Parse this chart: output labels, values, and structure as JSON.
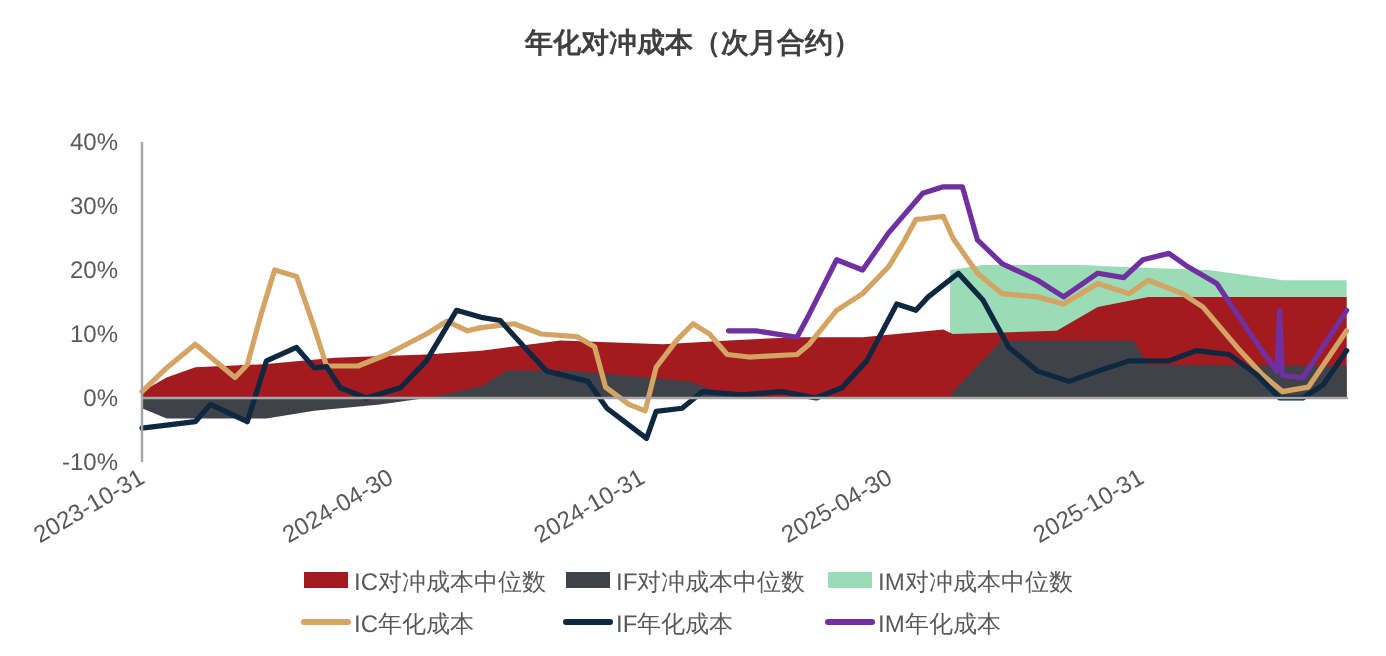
{
  "chart_data": {
    "type": "line",
    "title": "年化对冲成本（次月合约）",
    "xlim": [
      "2023-10-31",
      "2026-03-31"
    ],
    "xticks": [
      "2023-10-31",
      "2024-04-30",
      "2024-10-31",
      "2025-04-30",
      "2025-10-31"
    ],
    "ylim": [
      -10,
      40
    ],
    "yticks": [
      {
        "value": -10,
        "label": "-10%"
      },
      {
        "value": 0,
        "label": "0%"
      },
      {
        "value": 10,
        "label": "10%"
      },
      {
        "value": 20,
        "label": "20%"
      },
      {
        "value": 30,
        "label": "30%"
      },
      {
        "value": 40,
        "label": "40%"
      }
    ],
    "grid": false,
    "legend": "bottom",
    "ref_lines": [
      {
        "axis": "y",
        "value": 0,
        "color": "#a6a6a6"
      }
    ],
    "series": [
      {
        "name": "IC对冲成本中位数",
        "type": "area",
        "color": "#a31a1f",
        "x": [
          "2023-10-31",
          "2023-11-18",
          "2023-12-09",
          "2024-01-30",
          "2024-03-20",
          "2024-05-26",
          "2024-07-05",
          "2024-09-01",
          "2024-11-15",
          "2025-01-02",
          "2025-02-21",
          "2025-04-10",
          "2025-06-08",
          "2025-06-15",
          "2025-08-30",
          "2025-09-29",
          "2025-11-05",
          "2026-03-30"
        ],
        "values": [
          1,
          3.2,
          4.8,
          5.3,
          6.3,
          6.8,
          7.4,
          9,
          8.4,
          9,
          9.5,
          9.5,
          10.7,
          10,
          10.5,
          14.2,
          15.8,
          15.8
        ]
      },
      {
        "name": "IF对冲成本中位数",
        "type": "area",
        "color": "#3f4249",
        "x": [
          "2023-10-31",
          "2023-11-18",
          "2024-01-30",
          "2024-03-05",
          "2024-04-22",
          "2024-05-26",
          "2024-07-05",
          "2024-07-24",
          "2024-09-06",
          "2024-11-04",
          "2024-12-04",
          "2024-12-24",
          "2025-01-08",
          "2025-06-13",
          "2025-06-15",
          "2025-07-21",
          "2025-10-25",
          "2025-11-05",
          "2026-03-30"
        ],
        "values": [
          -1.6,
          -3.2,
          -3.2,
          -2,
          -1,
          0,
          1.8,
          4.3,
          4.3,
          3.2,
          2.6,
          1,
          0,
          0,
          1,
          9,
          9,
          5.2,
          5
        ]
      },
      {
        "name": "IM对冲成本中位数",
        "type": "area",
        "color": "#99dcb6",
        "x": [
          "2025-06-13",
          "2025-07-07",
          "2025-09-18",
          "2025-10-13",
          "2025-12-19",
          "2026-02-11",
          "2026-03-30"
        ],
        "values": [
          20,
          20.8,
          20.8,
          20.5,
          20,
          18.4,
          18.4
        ]
      },
      {
        "name": "IC年化成本",
        "color": "#d4a464",
        "x": [
          "2023-10-31",
          "2023-11-18",
          "2023-12-09",
          "2024-01-07",
          "2024-01-16",
          "2024-01-26",
          "2024-02-05",
          "2024-02-21",
          "2024-03-05",
          "2024-03-14",
          "2024-04-06",
          "2024-04-27",
          "2024-05-26",
          "2024-06-10",
          "2024-06-25",
          "2024-07-05",
          "2024-07-29",
          "2024-08-18",
          "2024-09-13",
          "2024-09-26",
          "2024-10-04",
          "2024-10-21",
          "2024-11-02",
          "2024-11-10",
          "2024-11-25",
          "2024-12-07",
          "2024-12-19",
          "2025-01-01",
          "2025-01-17",
          "2025-02-21",
          "2025-03-02",
          "2025-03-22",
          "2025-04-10",
          "2025-04-29",
          "2025-05-09",
          "2025-05-19",
          "2025-05-24",
          "2025-06-08",
          "2025-06-15",
          "2025-07-03",
          "2025-07-21",
          "2025-08-16",
          "2025-09-04",
          "2025-09-29",
          "2025-10-22",
          "2025-11-05",
          "2025-11-30",
          "2025-12-15",
          "2026-01-09",
          "2026-01-27",
          "2026-02-11",
          "2026-03-02",
          "2026-03-30"
        ],
        "values": [
          1,
          4.7,
          8.4,
          3.2,
          5.2,
          13,
          20,
          19,
          11,
          5,
          5,
          6.8,
          10,
          12,
          10.5,
          11,
          11.6,
          10,
          9.6,
          8,
          1.7,
          -1,
          -2,
          4.8,
          9,
          11.6,
          10,
          6.8,
          6.4,
          6.8,
          8.4,
          13.7,
          16.3,
          20.5,
          24,
          27.9,
          28,
          28.4,
          25,
          19.5,
          16.3,
          15.8,
          14.7,
          17.9,
          16.3,
          18.4,
          16.3,
          14.2,
          7.9,
          3.7,
          1,
          1.7,
          10.5
        ]
      },
      {
        "name": "IF年化成本",
        "color": "#0f2841",
        "x": [
          "2023-10-31",
          "2023-12-09",
          "2023-12-20",
          "2024-01-16",
          "2024-01-30",
          "2024-02-21",
          "2024-03-05",
          "2024-03-14",
          "2024-03-24",
          "2024-04-12",
          "2024-05-07",
          "2024-05-26",
          "2024-06-17",
          "2024-07-05",
          "2024-07-19",
          "2024-08-08",
          "2024-08-22",
          "2024-09-21",
          "2024-10-05",
          "2024-11-03",
          "2024-11-10",
          "2024-11-29",
          "2024-12-14",
          "2025-01-12",
          "2025-02-10",
          "2025-03-07",
          "2025-03-26",
          "2025-04-13",
          "2025-05-05",
          "2025-05-19",
          "2025-05-28",
          "2025-06-19",
          "2025-07-07",
          "2025-07-26",
          "2025-08-16",
          "2025-09-08",
          "2025-09-29",
          "2025-10-22",
          "2025-11-20",
          "2025-12-10",
          "2026-01-03",
          "2026-01-23",
          "2026-02-09",
          "2026-02-26",
          "2026-03-13",
          "2026-03-30"
        ],
        "values": [
          -4.7,
          -3.7,
          -1,
          -3.7,
          5.8,
          7.9,
          4.7,
          4.9,
          1.6,
          0,
          1.6,
          5.8,
          13.7,
          12.6,
          12.1,
          7.4,
          4.2,
          2.6,
          -1.6,
          -6.3,
          -2.1,
          -1.6,
          1,
          0.5,
          1,
          0,
          1.6,
          5.8,
          14.7,
          13.7,
          15.8,
          19.5,
          15.3,
          7.9,
          4.2,
          2.6,
          4.2,
          5.8,
          5.8,
          7.4,
          6.8,
          3.7,
          0,
          0,
          2.1,
          7.4
        ]
      },
      {
        "name": "IM年化成本",
        "color": "#7030a0",
        "x": [
          "2025-01-02",
          "2025-01-22",
          "2025-02-21",
          "2025-03-02",
          "2025-03-22",
          "2025-04-10",
          "2025-04-29",
          "2025-05-24",
          "2025-06-08",
          "2025-06-22",
          "2025-07-03",
          "2025-07-21",
          "2025-08-16",
          "2025-09-04",
          "2025-09-29",
          "2025-10-18",
          "2025-11-01",
          "2025-11-20",
          "2025-12-04",
          "2025-12-25",
          "2026-01-09",
          "2026-01-27",
          "2026-02-07",
          "2026-02-09",
          "2026-02-11",
          "2026-02-26",
          "2026-03-30"
        ],
        "values": [
          10.5,
          10.5,
          9.5,
          13.1,
          21.6,
          20,
          25.8,
          32,
          33,
          33,
          24.7,
          21,
          18.4,
          15.8,
          19.5,
          18.8,
          21.6,
          22.6,
          20.5,
          17.9,
          13.1,
          7.4,
          4.2,
          13.7,
          3.5,
          3.2,
          13.7
        ]
      }
    ]
  }
}
